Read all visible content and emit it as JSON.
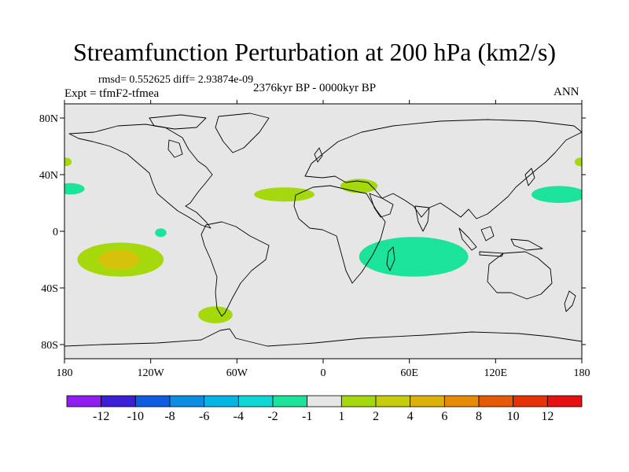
{
  "title": "Streamfunction Perturbation at 200 hPa (km2/s)",
  "stats": "rmsd= 0.552625 diff= 2.93874e-09",
  "experiment": "Expt = tfmF2-tfmea",
  "period": "2376kyr BP - 0000kyr BP",
  "season": "ANN",
  "map": {
    "lon_range": [
      -180,
      180
    ],
    "lat_range": [
      -90,
      90
    ],
    "background_color": "#e6e6e6",
    "x_ticks": [
      {
        "lon": -180,
        "label": "180"
      },
      {
        "lon": -120,
        "label": "120W"
      },
      {
        "lon": -60,
        "label": "60W"
      },
      {
        "lon": 0,
        "label": "0"
      },
      {
        "lon": 60,
        "label": "60E"
      },
      {
        "lon": 120,
        "label": "120E"
      },
      {
        "lon": 180,
        "label": "180"
      }
    ],
    "y_ticks": [
      {
        "lat": 80,
        "label": "80N"
      },
      {
        "lat": 40,
        "label": "40N"
      },
      {
        "lat": 0,
        "label": "0"
      },
      {
        "lat": -40,
        "label": "40S"
      },
      {
        "lat": -80,
        "label": "80S"
      }
    ],
    "anomaly_regions": [
      {
        "name": "east-pacific-positive-outer",
        "lon": -141,
        "lat": -20,
        "rlon": 30,
        "rlat": 12,
        "color": "#a5d80d"
      },
      {
        "name": "east-pacific-positive-inner",
        "lon": -142,
        "lat": -20,
        "rlon": 14,
        "rlat": 7,
        "color": "#d6c20a"
      },
      {
        "name": "south-atlantic-positive",
        "lon": -75,
        "lat": -59,
        "rlon": 12,
        "rlat": 6,
        "color": "#a5d80d"
      },
      {
        "name": "north-atlantic-positive",
        "lon": -27,
        "lat": 26,
        "rlon": 21,
        "rlat": 5,
        "color": "#a5d80d"
      },
      {
        "name": "mediterranean-positive",
        "lon": 25,
        "lat": 32,
        "rlon": 13,
        "rlat": 5,
        "color": "#a5d80d"
      },
      {
        "name": "indian-ocean-negative",
        "lon": 63,
        "lat": -18,
        "rlon": 38,
        "rlat": 14,
        "color": "#1be39a"
      },
      {
        "name": "west-pacific-negative",
        "lon": 164,
        "lat": 26,
        "rlon": 19,
        "rlat": 6,
        "color": "#1be39a"
      },
      {
        "name": "dateline-negative",
        "lon": -176,
        "lat": 30,
        "rlon": 10,
        "rlat": 4,
        "color": "#1be39a"
      },
      {
        "name": "dateline-positive-west",
        "lon": -179,
        "lat": 49,
        "rlon": 4,
        "rlat": 3,
        "color": "#a5d80d"
      },
      {
        "name": "dateline-positive-east",
        "lon": 179,
        "lat": 49,
        "rlon": 4,
        "rlat": 3,
        "color": "#a5d80d"
      },
      {
        "name": "equatorial-pacific-negative",
        "lon": -113,
        "lat": -1,
        "rlon": 4,
        "rlat": 3,
        "color": "#1be39a"
      }
    ]
  },
  "colorbar": {
    "colors": [
      "#8f1cf0",
      "#3a1ed8",
      "#0f5ce3",
      "#0a8de3",
      "#05b5e6",
      "#0dd7d7",
      "#1be39a",
      "#e6e6e6",
      "#a5d80d",
      "#c5cd0c",
      "#deb10a",
      "#e68a05",
      "#e65a05",
      "#e63205",
      "#e61010"
    ],
    "labels": [
      "-12",
      "-10",
      "-8",
      "-6",
      "-4",
      "-2",
      "-1",
      "1",
      "2",
      "4",
      "6",
      "8",
      "10",
      "12"
    ]
  }
}
